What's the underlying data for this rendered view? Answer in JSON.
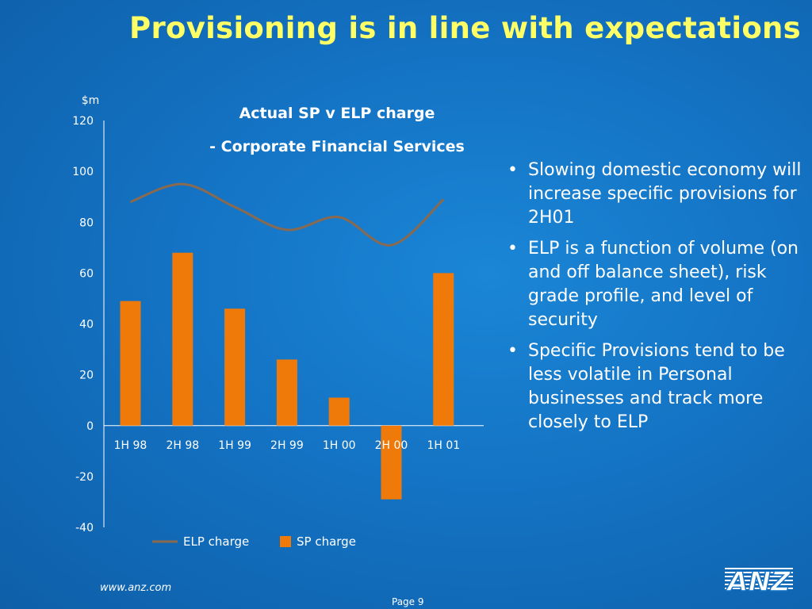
{
  "slide": {
    "title": "Provisioning is in line with expectations",
    "bullets": [
      "Slowing domestic economy will increase specific provisions for 2H01",
      "ELP is a function of volume (on and off balance sheet), risk grade profile, and level of security",
      "Specific Provisions tend to be less volatile in Personal businesses and track more closely to ELP"
    ],
    "footer_url": "www.anz.com",
    "page_label": "Page 9",
    "logo_text": "ANZ"
  },
  "colors": {
    "elp_line": "#8a6a4e",
    "sp_bar": "#ef7a0a",
    "title": "#ffff66"
  },
  "chart_data": {
    "type": "bar",
    "title": "Actual SP v ELP charge",
    "subtitle": "- Corporate Financial Services",
    "ylabel": "$m",
    "xlabel": "",
    "ylim": [
      -40,
      120
    ],
    "yticks": [
      120,
      100,
      80,
      60,
      40,
      20,
      0,
      -20,
      -40
    ],
    "categories": [
      "1H 98",
      "2H 98",
      "1H 99",
      "2H 99",
      "1H 00",
      "2H 00",
      "1H 01"
    ],
    "series": [
      {
        "name": "ELP charge",
        "type": "line",
        "values": [
          88,
          95,
          86,
          77,
          82,
          71,
          89
        ]
      },
      {
        "name": "SP charge",
        "type": "bar",
        "values": [
          49,
          68,
          46,
          26,
          11,
          -29,
          60
        ]
      }
    ],
    "legend": "bottom",
    "grid": false
  }
}
